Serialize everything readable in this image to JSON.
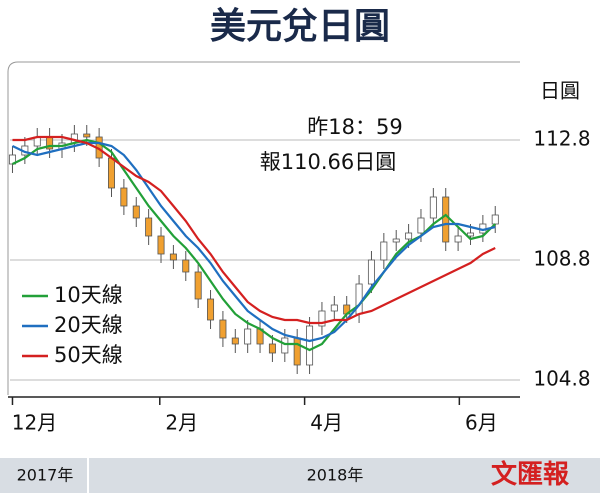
{
  "chart_data": {
    "type": "candlestick",
    "title": "美元兌日圓",
    "y_axis_label": "日圓",
    "annotations": [
      "昨18：59",
      "報110.66日圓"
    ],
    "x": [
      0,
      1,
      2,
      3,
      4,
      5,
      6,
      7,
      8,
      9,
      10,
      11,
      12,
      13,
      14,
      15,
      16,
      17,
      18,
      19,
      20,
      21,
      22,
      23,
      24,
      25,
      26,
      27,
      28,
      29,
      30,
      31,
      32,
      33,
      34,
      35,
      36,
      37,
      38,
      39
    ],
    "xlim": [
      -0.2,
      41
    ],
    "xticks": [
      {
        "value": 0,
        "label": "12月"
      },
      {
        "value": 11.9,
        "label": "2月"
      },
      {
        "value": 23.6,
        "label": "4月"
      },
      {
        "value": 36.1,
        "label": "6月"
      }
    ],
    "ylim": [
      104.3,
      115.4
    ],
    "yticks": [
      104.8,
      108.8,
      112.8
    ],
    "grid": true,
    "up_color": "#ffffff",
    "down_color": "#f0a030",
    "open": [
      112.0,
      112.3,
      112.6,
      112.9,
      112.5,
      112.7,
      113.0,
      112.9,
      112.2,
      111.2,
      110.6,
      110.2,
      109.6,
      109.0,
      108.8,
      108.4,
      107.5,
      106.8,
      106.2,
      106.0,
      106.5,
      106.0,
      105.7,
      106.2,
      105.3,
      106.6,
      107.1,
      107.3,
      107.0,
      108.0,
      108.8,
      109.4,
      109.5,
      109.7,
      110.2,
      110.9,
      109.4,
      109.6,
      109.7,
      110.0
    ],
    "high": [
      112.6,
      112.9,
      113.2,
      113.2,
      113.0,
      113.3,
      113.3,
      113.2,
      112.5,
      111.5,
      110.9,
      110.5,
      109.9,
      109.3,
      109.1,
      108.7,
      107.8,
      107.1,
      106.5,
      106.8,
      106.8,
      106.3,
      106.5,
      106.5,
      106.9,
      107.4,
      107.6,
      107.6,
      108.3,
      109.1,
      109.7,
      109.8,
      110.0,
      110.5,
      111.2,
      111.2,
      109.9,
      110.0,
      110.3,
      110.6
    ],
    "low": [
      111.7,
      112.0,
      112.3,
      112.2,
      112.2,
      112.4,
      112.6,
      111.9,
      110.9,
      110.3,
      109.9,
      109.3,
      108.7,
      108.5,
      108.1,
      107.2,
      106.5,
      105.9,
      105.7,
      105.7,
      105.7,
      105.4,
      105.4,
      105.0,
      105.0,
      106.3,
      106.8,
      106.7,
      106.7,
      107.7,
      108.5,
      109.1,
      109.2,
      109.4,
      109.9,
      109.1,
      109.1,
      109.3,
      109.4,
      109.7
    ],
    "close": [
      112.3,
      112.6,
      112.9,
      112.5,
      112.7,
      113.0,
      112.9,
      112.2,
      111.2,
      110.6,
      110.2,
      109.6,
      109.0,
      108.8,
      108.4,
      107.5,
      106.8,
      106.2,
      106.0,
      106.5,
      106.0,
      105.7,
      106.2,
      105.3,
      106.6,
      107.1,
      107.3,
      107.0,
      108.0,
      108.8,
      109.4,
      109.5,
      109.7,
      110.2,
      110.9,
      109.4,
      109.6,
      109.7,
      110.0,
      110.3
    ],
    "series": [
      {
        "name": "10天線",
        "color": "#22a038",
        "values": [
          112.0,
          112.2,
          112.5,
          112.6,
          112.6,
          112.7,
          112.8,
          112.7,
          112.4,
          111.8,
          111.2,
          110.6,
          110.1,
          109.6,
          109.2,
          108.7,
          108.1,
          107.5,
          107.0,
          106.7,
          106.5,
          106.2,
          106.0,
          106.0,
          105.8,
          106.0,
          106.5,
          107.0,
          107.3,
          107.8,
          108.4,
          109.0,
          109.4,
          109.6,
          110.0,
          110.3,
          109.9,
          109.5,
          109.6,
          110.0
        ]
      },
      {
        "name": "20天線",
        "color": "#1f6fc0",
        "values": [
          112.6,
          112.4,
          112.3,
          112.4,
          112.5,
          112.6,
          112.7,
          112.7,
          112.6,
          112.3,
          111.8,
          111.2,
          110.6,
          110.1,
          109.6,
          109.2,
          108.7,
          108.1,
          107.6,
          107.1,
          106.8,
          106.5,
          106.3,
          106.2,
          106.1,
          106.2,
          106.4,
          106.8,
          107.3,
          107.9,
          108.4,
          108.9,
          109.3,
          109.6,
          109.9,
          110.0,
          110.0,
          109.9,
          109.8,
          109.9
        ]
      },
      {
        "name": "50天線",
        "color": "#d42020",
        "values": [
          112.8,
          112.8,
          112.9,
          112.9,
          112.9,
          112.8,
          112.7,
          112.5,
          112.2,
          111.9,
          111.6,
          111.4,
          111.1,
          110.6,
          110.1,
          109.5,
          109.0,
          108.4,
          107.9,
          107.4,
          107.1,
          106.9,
          106.8,
          106.8,
          106.7,
          106.7,
          106.8,
          106.8,
          107.0,
          107.1,
          107.3,
          107.5,
          107.7,
          107.9,
          108.1,
          108.3,
          108.5,
          108.7,
          109.0,
          109.2
        ]
      }
    ],
    "year_labels": [
      "2017年",
      "2018年"
    ],
    "logo": "文匯報"
  }
}
